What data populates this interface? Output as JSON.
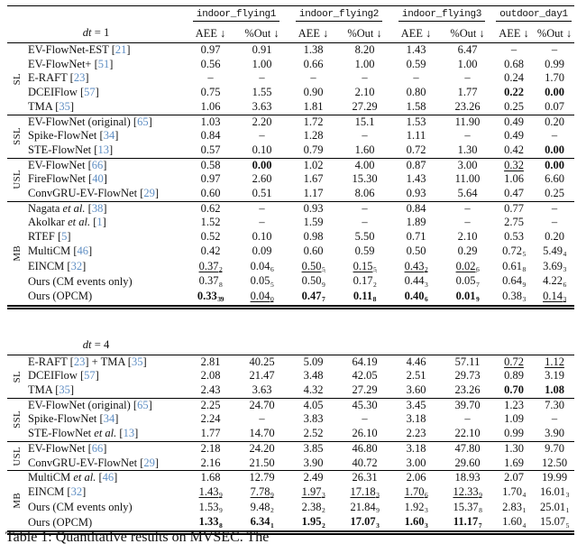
{
  "caption": "Table 1: Quantitative results on MVSEC. The",
  "colors": {
    "cite_link": "#5f8ec3",
    "rule": "#000000",
    "text": "#111111"
  },
  "datasets": [
    "indoor_flying1",
    "indoor_flying2",
    "indoor_flying3",
    "outdoor_day1"
  ],
  "metric_headers": {
    "aee": "AEE ↓",
    "out": "%Out ↓"
  },
  "tables": [
    {
      "id": "dt1",
      "dt_label": {
        "it": "dt",
        "rest": " = 1"
      },
      "show_dataset_header": true,
      "sections": [
        {
          "label": "SL",
          "rows": [
            {
              "name": [
                {
                  "t": "EV-FlowNet-EST "
                },
                {
                  "c": "21"
                }
              ],
              "cells": [
                "0.97",
                "0.91",
                "1.38",
                "8.20",
                "1.43",
                "6.47",
                "–",
                "–"
              ]
            },
            {
              "name": [
                {
                  "t": "EV-FlowNet+ "
                },
                {
                  "c": "51"
                }
              ],
              "cells": [
                "0.56",
                "1.00",
                "0.66",
                "1.00",
                "0.59",
                "1.00",
                "0.68",
                "0.99"
              ]
            },
            {
              "name": [
                {
                  "t": "E-RAFT "
                },
                {
                  "c": "23"
                }
              ],
              "cells": [
                "–",
                "–",
                "–",
                "–",
                "–",
                "–",
                "0.24",
                "1.70"
              ]
            },
            {
              "name": [
                {
                  "t": "DCEIFlow "
                },
                {
                  "c": "57"
                }
              ],
              "cells": [
                "0.75",
                "1.55",
                "0.90",
                "2.10",
                "0.80",
                "1.77",
                "b:0.22",
                "b:0.00"
              ]
            },
            {
              "name": [
                {
                  "t": "TMA "
                },
                {
                  "c": "35"
                }
              ],
              "cells": [
                "1.06",
                "3.63",
                "1.81",
                "27.29",
                "1.58",
                "23.26",
                "0.25",
                "0.07"
              ]
            }
          ]
        },
        {
          "label": "SSL",
          "rows": [
            {
              "name": [
                {
                  "t": "EV-FlowNet (original) "
                },
                {
                  "c": "65"
                }
              ],
              "cells": [
                "1.03",
                "2.20",
                "1.72",
                "15.1",
                "1.53",
                "11.90",
                "0.49",
                "0.20"
              ]
            },
            {
              "name": [
                {
                  "t": "Spike-FlowNet "
                },
                {
                  "c": "34"
                }
              ],
              "cells": [
                "0.84",
                "–",
                "1.28",
                "–",
                "1.11",
                "–",
                "0.49",
                "–"
              ]
            },
            {
              "name": [
                {
                  "t": "STE-FlowNet "
                },
                {
                  "c": "13"
                }
              ],
              "cells": [
                "0.57",
                "0.10",
                "0.79",
                "1.60",
                "0.72",
                "1.30",
                "0.42",
                "b:0.00"
              ]
            }
          ]
        },
        {
          "label": "USL",
          "rows": [
            {
              "name": [
                {
                  "t": "EV-FlowNet "
                },
                {
                  "c": "66"
                }
              ],
              "cells": [
                "0.58",
                "b:0.00",
                "1.02",
                "4.00",
                "0.87",
                "3.00",
                "u:0.32",
                "b:0.00"
              ]
            },
            {
              "name": [
                {
                  "t": "FireFlowNet "
                },
                {
                  "c": "40"
                }
              ],
              "cells": [
                "0.97",
                "2.60",
                "1.67",
                "15.30",
                "1.43",
                "11.00",
                "1.06",
                "6.60"
              ]
            },
            {
              "name": [
                {
                  "t": "ConvGRU-EV-FlowNet "
                },
                {
                  "c": "29"
                }
              ],
              "cells": [
                "0.60",
                "0.51",
                "1.17",
                "8.06",
                "0.93",
                "5.64",
                "0.47",
                "0.25"
              ]
            }
          ]
        },
        {
          "label": "MB",
          "rows": [
            {
              "name": [
                {
                  "t": "Nagata "
                },
                {
                  "i": "et al. "
                },
                {
                  "c": "38"
                }
              ],
              "cells": [
                "0.62",
                "–",
                "0.93",
                "–",
                "0.84",
                "–",
                "0.77",
                "–"
              ]
            },
            {
              "name": [
                {
                  "t": "Akolkar "
                },
                {
                  "i": "et al. "
                },
                {
                  "c": "1"
                }
              ],
              "cells": [
                "1.52",
                "–",
                "1.59",
                "–",
                "1.89",
                "–",
                "2.75",
                "–"
              ]
            },
            {
              "name": [
                {
                  "t": "RTEF "
                },
                {
                  "c": "5"
                }
              ],
              "cells": [
                "0.52",
                "0.10",
                "0.98",
                "5.50",
                "0.71",
                "2.10",
                "0.53",
                "0.20"
              ]
            },
            {
              "name": [
                {
                  "t": "MultiCM "
                },
                {
                  "c": "46"
                }
              ],
              "cells": [
                "0.42",
                "0.09",
                "0.60",
                "0.59",
                "0.50",
                "0.29",
                "0.72;5",
                "5.49;4"
              ]
            },
            {
              "name": [
                {
                  "t": "EINCM "
                },
                {
                  "c": "32"
                }
              ],
              "cells": [
                "u:0.37;2",
                "0.04;6",
                "u:0.50;5",
                "u:0.15;5",
                "u:0.43;2",
                "u:0.02;6",
                "0.61;8",
                "3.69;3"
              ]
            },
            {
              "name": [
                {
                  "t": "Ours (CM events only)"
                }
              ],
              "cells": [
                "0.37;8",
                "0.05;5",
                "0.50;9",
                "0.17;2",
                "0.44;3",
                "0.05;7",
                "0.64;9",
                "4.22;6"
              ]
            },
            {
              "name": [
                {
                  "t": "Ours (OPCM)"
                }
              ],
              "cells": [
                "b:0.33;39",
                "u:0.04;0",
                "b:0.47;7",
                "b:0.11;8",
                "b:0.40;6",
                "b:0.01;9",
                "0.38;3",
                "u:0.14;3"
              ]
            }
          ]
        }
      ]
    },
    {
      "id": "dt4",
      "dt_label": {
        "it": "dt",
        "rest": " = 4"
      },
      "show_dataset_header": false,
      "sections": [
        {
          "label": "SL",
          "rows": [
            {
              "name": [
                {
                  "t": "E-RAFT "
                },
                {
                  "c": "23"
                },
                {
                  "t": " + TMA "
                },
                {
                  "c": "35"
                }
              ],
              "cells": [
                "2.81",
                "40.25",
                "5.09",
                "64.19",
                "4.46",
                "57.11",
                "u:0.72",
                "u:1.12"
              ]
            },
            {
              "name": [
                {
                  "t": "DCEIFlow "
                },
                {
                  "c": "57"
                }
              ],
              "cells": [
                "2.08",
                "21.47",
                "3.48",
                "42.05",
                "2.51",
                "29.73",
                "0.89",
                "3.19"
              ]
            },
            {
              "name": [
                {
                  "t": "TMA "
                },
                {
                  "c": "35"
                }
              ],
              "cells": [
                "2.43",
                "3.63",
                "4.32",
                "27.29",
                "3.60",
                "23.26",
                "b:0.70",
                "b:1.08"
              ]
            }
          ]
        },
        {
          "label": "SSL",
          "rows": [
            {
              "name": [
                {
                  "t": "EV-FlowNet (original) "
                },
                {
                  "c": "65"
                }
              ],
              "cells": [
                "2.25",
                "24.70",
                "4.05",
                "45.30",
                "3.45",
                "39.70",
                "1.23",
                "7.30"
              ]
            },
            {
              "name": [
                {
                  "t": "Spike-FlowNet "
                },
                {
                  "c": "34"
                }
              ],
              "cells": [
                "2.24",
                "–",
                "3.83",
                "–",
                "3.18",
                "–",
                "1.09",
                "–"
              ]
            },
            {
              "name": [
                {
                  "t": "STE-FlowNet "
                },
                {
                  "i": "et al. "
                },
                {
                  "c": "13"
                }
              ],
              "cells": [
                "1.77",
                "14.70",
                "2.52",
                "26.10",
                "2.23",
                "22.10",
                "0.99",
                "3.90"
              ]
            }
          ]
        },
        {
          "label": "USL",
          "rows": [
            {
              "name": [
                {
                  "t": "EV-FlowNet "
                },
                {
                  "c": "66"
                }
              ],
              "cells": [
                "2.18",
                "24.20",
                "3.85",
                "46.80",
                "3.18",
                "47.80",
                "1.30",
                "9.70"
              ]
            },
            {
              "name": [
                {
                  "t": "ConvGRU-EV-FlowNet "
                },
                {
                  "c": "29"
                }
              ],
              "cells": [
                "2.16",
                "21.50",
                "3.90",
                "40.72",
                "3.00",
                "29.60",
                "1.69",
                "12.50"
              ]
            }
          ]
        },
        {
          "label": "MB",
          "rows": [
            {
              "name": [
                {
                  "t": "MultiCM "
                },
                {
                  "i": "et al. "
                },
                {
                  "c": "46"
                }
              ],
              "cells": [
                "1.68",
                "12.79",
                "2.49",
                "26.31",
                "2.06",
                "18.93",
                "2.07",
                "19.99"
              ]
            },
            {
              "name": [
                {
                  "t": "EINCM "
                },
                {
                  "c": "32"
                }
              ],
              "cells": [
                "u:1.43;9",
                "u:7.78;9",
                "u:1.97;3",
                "u:17.18;3",
                "u:1.70;6",
                "u:12.33;9",
                "1.70;4",
                "16.01;3"
              ]
            },
            {
              "name": [
                {
                  "t": "Ours (CM events only)"
                }
              ],
              "cells": [
                "1.53;9",
                "9.48;2",
                "2.38;2",
                "21.84;9",
                "1.92;3",
                "15.37;8",
                "2.83;1",
                "25.01;1"
              ]
            },
            {
              "name": [
                {
                  "t": "Ours (OPCM)"
                }
              ],
              "cells": [
                "b:1.33;8",
                "b:6.34;1",
                "b:1.95;2",
                "b:17.07;3",
                "b:1.60;3",
                "b:11.17;7",
                "1.60;4",
                "15.07;5"
              ]
            }
          ]
        }
      ]
    }
  ]
}
